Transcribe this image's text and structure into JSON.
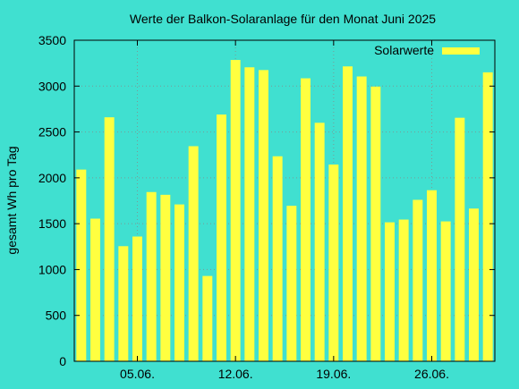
{
  "chart_data": {
    "type": "bar",
    "title": "Werte der Balkon-Solaranlage für den Monat Juni 2025",
    "ylabel": "gesamt Wh pro Tag",
    "xlabel": "",
    "x_dates": [
      "2025-06-01",
      "2025-06-02",
      "2025-06-03",
      "2025-06-04",
      "2025-06-05",
      "2025-06-06",
      "2025-06-07",
      "2025-06-08",
      "2025-06-09",
      "2025-06-10",
      "2025-06-11",
      "2025-06-12",
      "2025-06-13",
      "2025-06-14",
      "2025-06-15",
      "2025-06-16",
      "2025-06-17",
      "2025-06-18",
      "2025-06-19",
      "2025-06-20",
      "2025-06-21",
      "2025-06-22",
      "2025-06-23",
      "2025-06-24",
      "2025-06-25",
      "2025-06-26",
      "2025-06-27",
      "2025-06-28",
      "2025-06-29",
      "2025-06-30"
    ],
    "values": [
      2090,
      1555,
      2660,
      1255,
      1360,
      1845,
      1815,
      1710,
      2345,
      930,
      2690,
      3285,
      3205,
      3175,
      2235,
      1695,
      3085,
      2600,
      2145,
      3215,
      3105,
      2995,
      1515,
      1545,
      1760,
      1865,
      1525,
      2655,
      1665,
      3150
    ],
    "series": [
      {
        "name": "Solarwerte",
        "color": "#ffff40"
      }
    ],
    "ylim": [
      0,
      3500
    ],
    "yticks": [
      0,
      500,
      1000,
      1500,
      2000,
      2500,
      3000,
      3500
    ],
    "xticks": [
      {
        "date": "2025-06-05",
        "label": "05.06."
      },
      {
        "date": "2025-06-12",
        "label": "12.06."
      },
      {
        "date": "2025-06-19",
        "label": "19.06."
      },
      {
        "date": "2025-06-26",
        "label": "26.06."
      }
    ],
    "grid": true,
    "legend_position": "top-right"
  }
}
